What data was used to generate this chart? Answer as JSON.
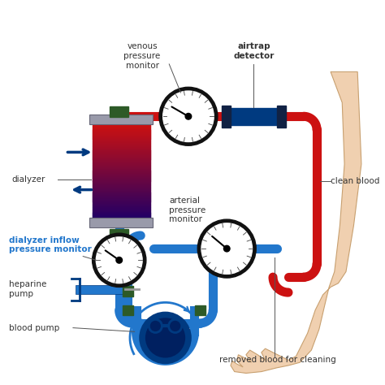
{
  "bg_color": "#ffffff",
  "red_tube": "#cc1111",
  "blue_tube": "#2277cc",
  "dark_blue": "#003a80",
  "dark_green": "#2d5a27",
  "gray_cap": "#8888aa",
  "skin_color": "#f0d0b0",
  "skin_edge": "#c8a070",
  "text_color": "#333333",
  "label_inflow_color": "#2277cc",
  "airtrap_color": "#003a80",
  "pump_dark": "#002060",
  "tube_lw": 8,
  "labels": {
    "venous_pressure_monitor": "venous\npressure\nmonitor",
    "airtrap_detector": "airtrap\ndetector",
    "clean_blood": "clean blood",
    "dialyzer": "dialyzer",
    "dialyzer_inflow": "dialyzer inflow\npressure monitor",
    "heparine_pump": "heparine\npump",
    "blood_pump": "blood pump",
    "arterial_pressure": "arterial\npressure\nmonitor",
    "removed_blood": "removed blood for cleaning"
  }
}
